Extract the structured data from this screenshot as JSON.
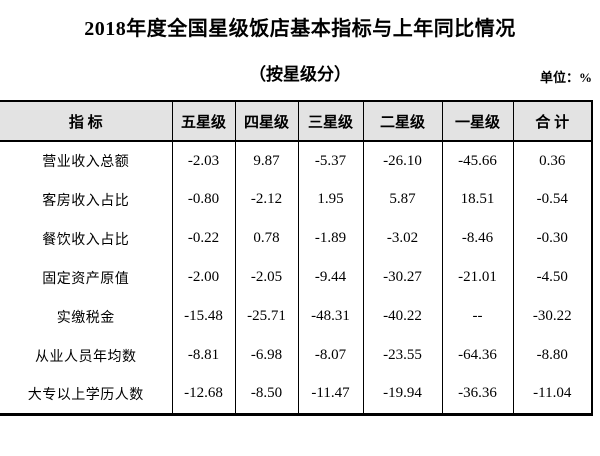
{
  "title": "2018年度全国星级饭店基本指标与上年同比情况",
  "subtitle": "（按星级分）",
  "unit_label": "单位：%",
  "colors": {
    "header_bg": "#e3e3e3",
    "border": "#000000",
    "text": "#000000",
    "page_bg": "#ffffff"
  },
  "table": {
    "columns": [
      "指 标",
      "五星级",
      "四星级",
      "三星级",
      "二星级",
      "一星级",
      "合 计"
    ],
    "rows": [
      {
        "label": "营业收入总额",
        "values": [
          "-2.03",
          "9.87",
          "-5.37",
          "-26.10",
          "-45.66",
          "0.36"
        ]
      },
      {
        "label": "客房收入占比",
        "values": [
          "-0.80",
          "-2.12",
          "1.95",
          "5.87",
          "18.51",
          "-0.54"
        ]
      },
      {
        "label": "餐饮收入占比",
        "values": [
          "-0.22",
          "0.78",
          "-1.89",
          "-3.02",
          "-8.46",
          "-0.30"
        ]
      },
      {
        "label": "固定资产原值",
        "values": [
          "-2.00",
          "-2.05",
          "-9.44",
          "-30.27",
          "-21.01",
          "-4.50"
        ]
      },
      {
        "label": "实缴税金",
        "values": [
          "-15.48",
          "-25.71",
          "-48.31",
          "-40.22",
          "--",
          "-30.22"
        ]
      },
      {
        "label": "从业人员年均数",
        "values": [
          "-8.81",
          "-6.98",
          "-8.07",
          "-23.55",
          "-64.36",
          "-8.80"
        ]
      },
      {
        "label": "大专以上学历人数",
        "values": [
          "-12.68",
          "-8.50",
          "-11.47",
          "-19.94",
          "-36.36",
          "-11.04"
        ]
      }
    ]
  }
}
